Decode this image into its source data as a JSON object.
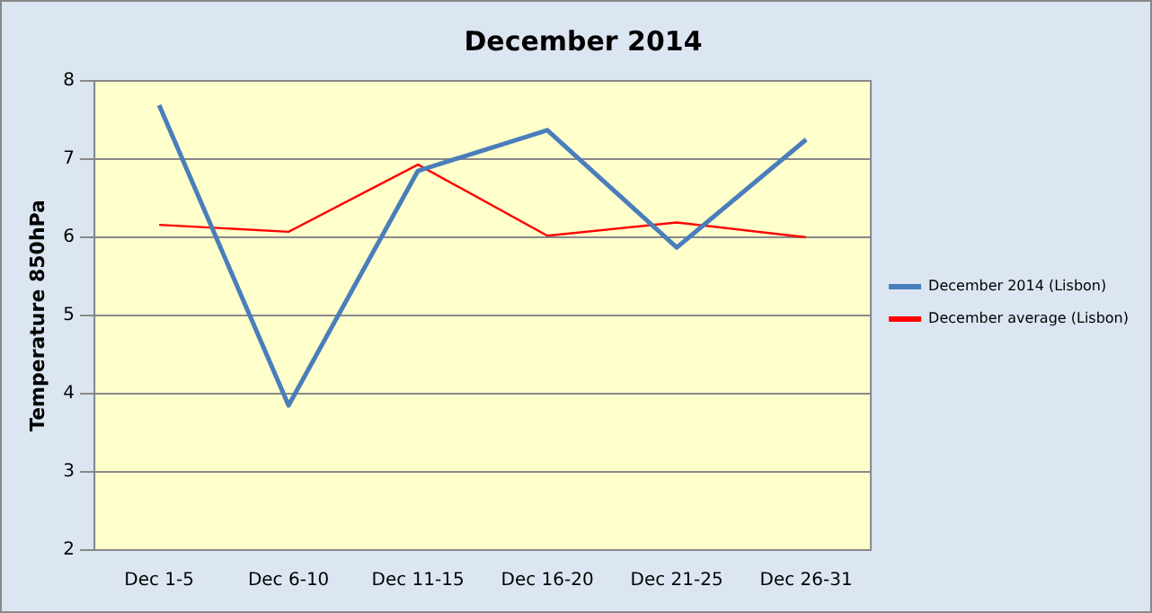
{
  "chart_data": {
    "type": "line",
    "title": "December 2014",
    "ylabel": "Temperature 850hPa",
    "categories": [
      "Dec 1-5",
      "Dec 6-10",
      "Dec 11-15",
      "Dec 16-20",
      "Dec 21-25",
      "Dec 26-31"
    ],
    "series": [
      {
        "name": "December 2014 (Lisbon)",
        "color": "#4a7ebb",
        "values": [
          7.69,
          3.85,
          6.85,
          7.37,
          5.87,
          7.25
        ]
      },
      {
        "name": "December average (Lisbon)",
        "color": "#ff0000",
        "values": [
          6.16,
          6.07,
          6.93,
          6.02,
          6.19,
          6.0
        ]
      }
    ],
    "ylim": [
      2,
      8
    ],
    "yticks": [
      2,
      3,
      4,
      5,
      6,
      7,
      8
    ],
    "grid": "y",
    "legend": "right",
    "marker": "none",
    "line_style": "solid"
  }
}
